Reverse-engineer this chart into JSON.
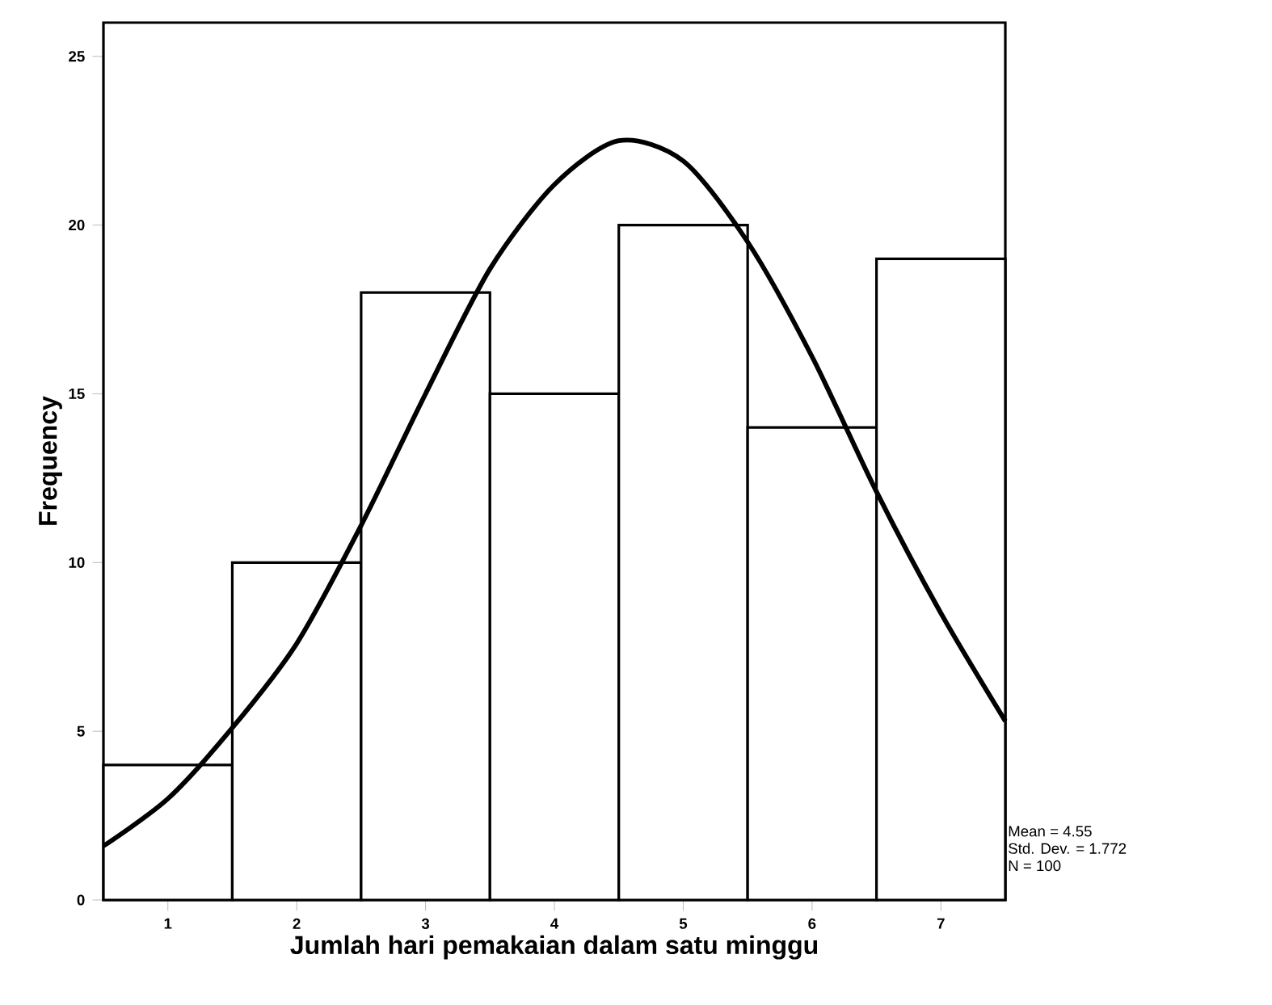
{
  "chart_data": {
    "type": "histogram",
    "xlabel": "Jumlah hari pemakaian dalam satu minggu",
    "ylabel": "Frequency",
    "xlim": [
      0.5,
      7.5
    ],
    "ylim": [
      0,
      26
    ],
    "xticks": [
      1,
      2,
      3,
      4,
      5,
      6,
      7
    ],
    "yticks": [
      0,
      5,
      10,
      15,
      20,
      25
    ],
    "series": [
      {
        "color": "#000000",
        "bins": [
          0.5,
          1.5,
          2.5,
          3.5,
          4.5,
          5.5,
          6.5,
          7.5
        ],
        "values": [
          4,
          10,
          18,
          15,
          20,
          14,
          19
        ]
      },
      {
        "type": "line",
        "color": "#000000",
        "x": [
          0.5,
          1,
          1.5,
          2,
          2.5,
          3,
          3.5,
          4,
          4.5,
          5,
          5.5,
          6,
          6.5,
          7,
          7.5
        ],
        "values": [
          1.6,
          3.0,
          5.1,
          7.6,
          11.1,
          15.0,
          18.7,
          21.2,
          22.5,
          21.9,
          19.5,
          16.1,
          12.1,
          8.5,
          5.3
        ]
      }
    ],
    "annotations": [
      "Mean = 4.55",
      "Std. Dev. = 1.772",
      "N = 100"
    ]
  }
}
